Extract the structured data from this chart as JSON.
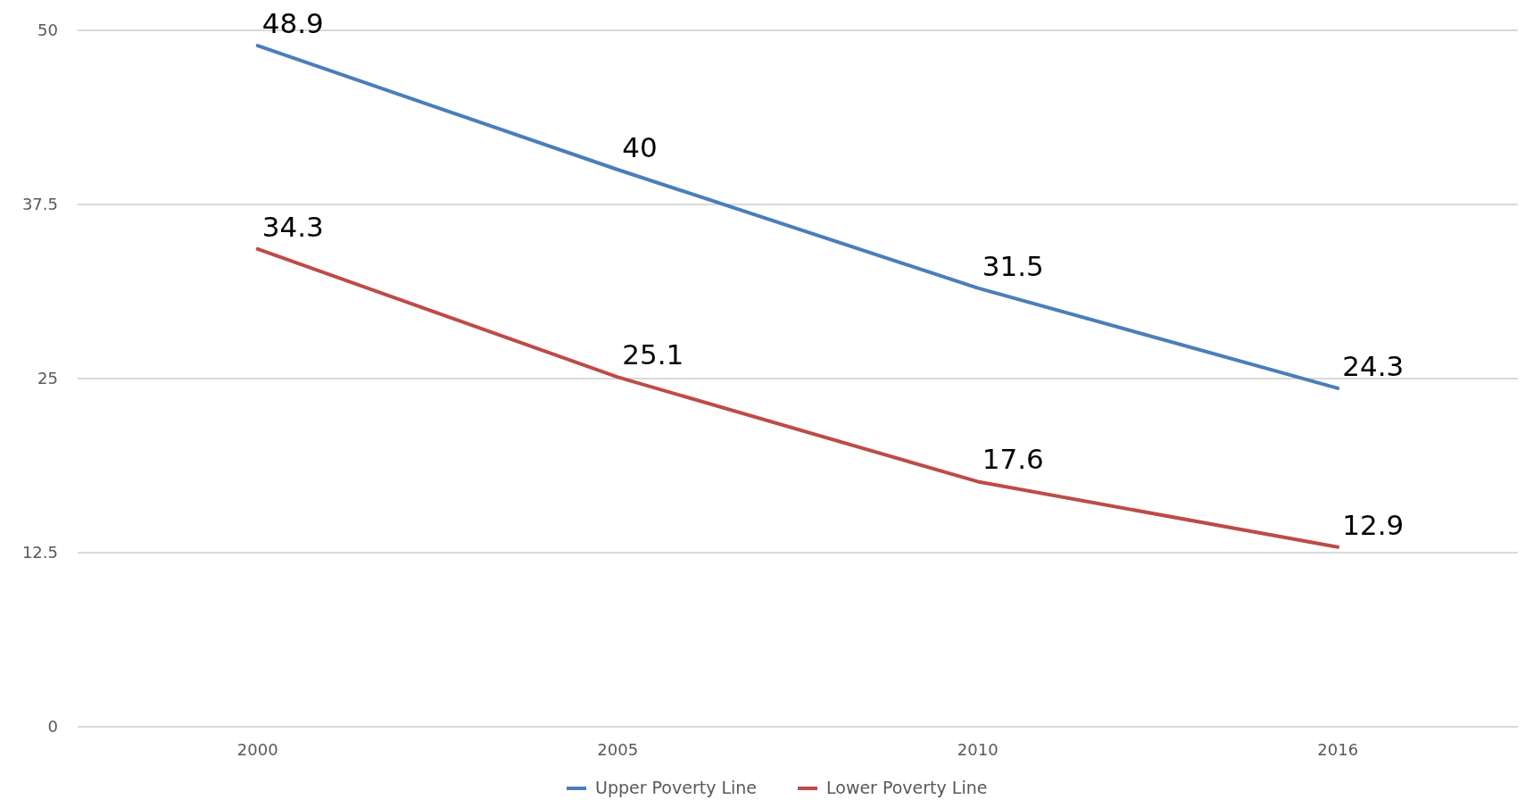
{
  "chart_data": {
    "type": "line",
    "categories": [
      "2000",
      "2005",
      "2010",
      "2016"
    ],
    "series": [
      {
        "name": "Upper Poverty Line",
        "color": "#4a7ebb",
        "values": [
          48.9,
          40,
          31.5,
          24.3
        ]
      },
      {
        "name": "Lower Poverty Line",
        "color": "#be4b48",
        "values": [
          34.3,
          25.1,
          17.6,
          12.9
        ]
      }
    ],
    "ylim": [
      0,
      50
    ],
    "yticks": [
      0,
      12.5,
      25,
      37.5,
      50
    ],
    "grid": "y",
    "legend": "bottom",
    "data_labels": true,
    "marker": "none",
    "line_style": "solid"
  }
}
